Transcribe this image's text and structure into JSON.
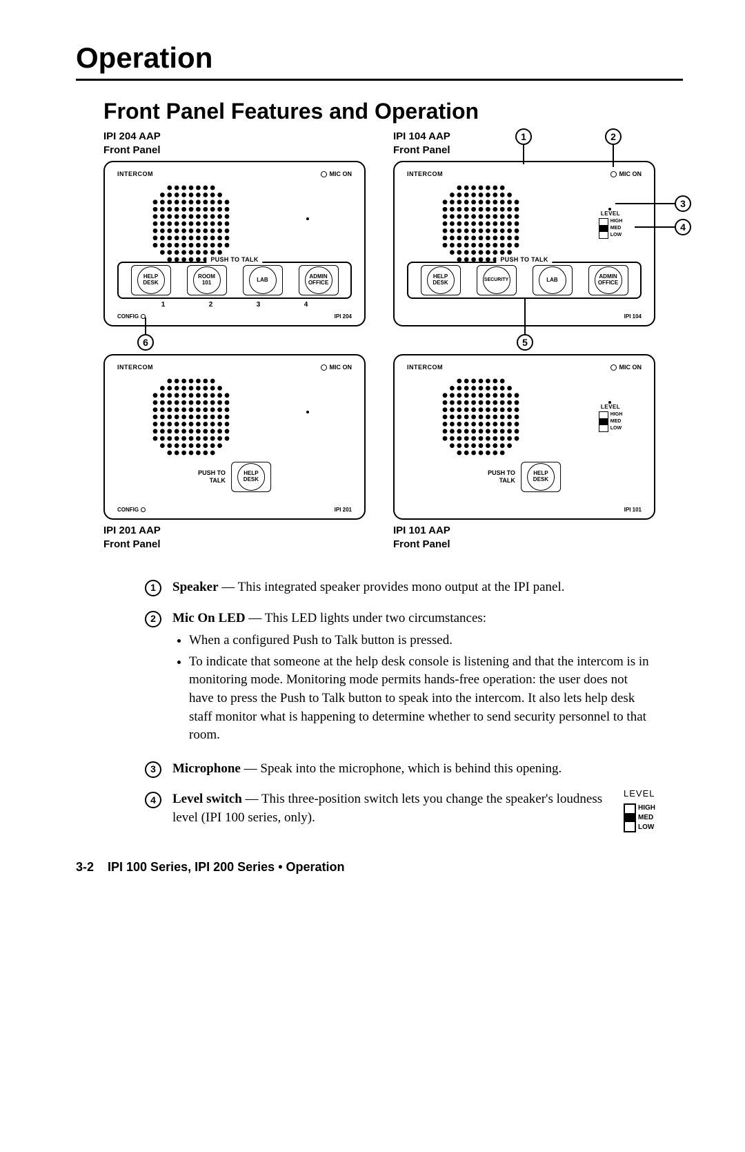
{
  "page_title": "Operation",
  "section_title": "Front Panel Features and Operation",
  "panels": {
    "p204": {
      "label_top": "IPI 204 AAP",
      "label_bottom": "Front Panel",
      "intercom": "INTERCOM",
      "micon": "MIC ON",
      "ptt": "PUSH TO TALK",
      "buttons": [
        "HELP\nDESK",
        "ROOM\n101",
        "LAB",
        "ADMIN\nOFFICE"
      ],
      "nums": [
        "1",
        "2",
        "3",
        "4"
      ],
      "config": "CONFIG",
      "model": "IPI 204"
    },
    "p104": {
      "label_top": "IPI 104 AAP",
      "label_bottom": "Front Panel",
      "intercom": "INTERCOM",
      "micon": "MIC ON",
      "level": "LEVEL",
      "level_hi": "HIGH",
      "level_med": "MED",
      "level_low": "LOW",
      "ptt": "PUSH TO TALK",
      "buttons": [
        "HELP\nDESK",
        "SECURITY",
        "LAB",
        "ADMIN\nOFFICE"
      ],
      "model": "IPI 104"
    },
    "p201": {
      "intercom": "INTERCOM",
      "micon": "MIC ON",
      "ptt": "PUSH TO\nTALK",
      "button": "HELP\nDESK",
      "config": "CONFIG",
      "model": "IPI 201",
      "label_top": "IPI 201 AAP",
      "label_bottom": "Front Panel"
    },
    "p101": {
      "intercom": "INTERCOM",
      "micon": "MIC ON",
      "level": "LEVEL",
      "level_hi": "HIGH",
      "level_med": "MED",
      "level_low": "LOW",
      "ptt": "PUSH TO\nTALK",
      "button": "HELP\nDESK",
      "model": "IPI 101",
      "label_top": "IPI 101 AAP",
      "label_bottom": "Front Panel"
    }
  },
  "callouts": {
    "c1": "1",
    "c2": "2",
    "c3": "3",
    "c4": "4",
    "c5": "5",
    "c6": "6"
  },
  "descriptions": {
    "d1": {
      "num": "1",
      "term": "Speaker",
      "text": " — This integrated speaker provides mono output at the IPI panel."
    },
    "d2": {
      "num": "2",
      "term": "Mic On LED",
      "text": " — This LED lights under two circumstances:",
      "b1": "When a configured Push to Talk button is pressed.",
      "b2": "To indicate that someone at the help desk console is listening and that the intercom is in monitoring mode. Monitoring mode permits hands-free operation: the user does not have to press the Push to Talk button to speak into the intercom. It also lets help desk staff monitor what is happening to determine whether to send security personnel to that room."
    },
    "d3": {
      "num": "3",
      "term": "Microphone",
      "text": " — Speak into the microphone, which is behind this opening."
    },
    "d4": {
      "num": "4",
      "term": "Level switch",
      "text": " — This three-position switch lets you change the speaker's loudness level (IPI 100 series, only).",
      "lvl": "LEVEL",
      "hi": "HIGH",
      "med": "MED",
      "low": "LOW"
    }
  },
  "footer": {
    "page": "3-2",
    "text": "IPI 100 Series, IPI 200 Series • Operation"
  }
}
